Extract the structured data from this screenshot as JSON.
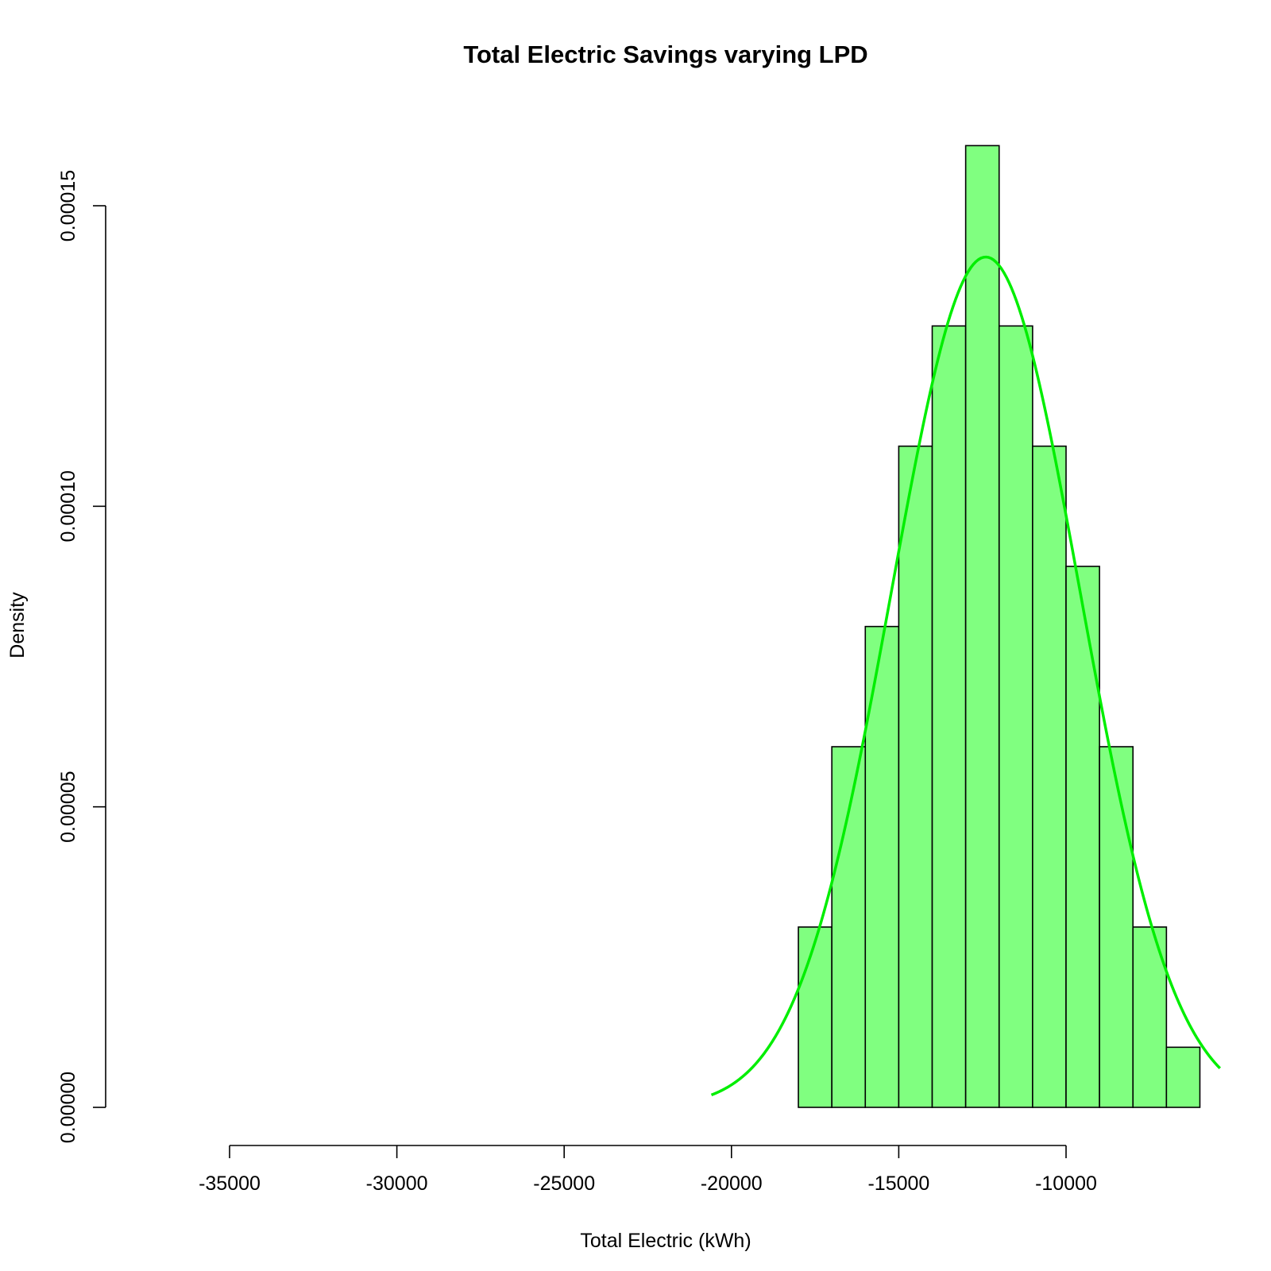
{
  "chart_data": {
    "type": "bar",
    "subtype": "histogram",
    "title": "Total Electric Savings varying LPD",
    "xlabel": "Total Electric (kWh)",
    "ylabel": "Density",
    "xlim": [
      -35000,
      -5000
    ],
    "ylim": [
      0,
      0.00016
    ],
    "x_ticks": [
      -35000,
      -30000,
      -25000,
      -20000,
      -15000,
      -10000
    ],
    "x_tick_labels": [
      "-35000",
      "-30000",
      "-25000",
      "-20000",
      "-15000",
      "-10000"
    ],
    "y_ticks": [
      0,
      5e-05,
      0.0001,
      0.00015
    ],
    "y_tick_labels": [
      "0.00000",
      "0.00005",
      "0.00010",
      "0.00015"
    ],
    "bins": [
      {
        "x0": -18000,
        "x1": -17000,
        "density": 3e-05
      },
      {
        "x0": -17000,
        "x1": -16000,
        "density": 6e-05
      },
      {
        "x0": -16000,
        "x1": -15000,
        "density": 8e-05
      },
      {
        "x0": -15000,
        "x1": -14000,
        "density": 0.00011
      },
      {
        "x0": -14000,
        "x1": -13000,
        "density": 0.00013
      },
      {
        "x0": -13000,
        "x1": -12000,
        "density": 0.00016
      },
      {
        "x0": -12000,
        "x1": -11000,
        "density": 0.00013
      },
      {
        "x0": -11000,
        "x1": -10000,
        "density": 0.00011
      },
      {
        "x0": -10000,
        "x1": -9000,
        "density": 9e-05
      },
      {
        "x0": -9000,
        "x1": -8000,
        "density": 6e-05
      },
      {
        "x0": -8000,
        "x1": -7000,
        "density": 3e-05
      },
      {
        "x0": -7000,
        "x1": -6000,
        "density": 1e-05
      }
    ],
    "density_curve": {
      "mean": -12400,
      "sd": 2820,
      "x_range": [
        -20600,
        -5400
      ]
    },
    "colors": {
      "bar_fill": "#80ff80",
      "bar_stroke": "#000000",
      "curve": "#00ee00"
    },
    "grid": false,
    "legend": "none"
  }
}
